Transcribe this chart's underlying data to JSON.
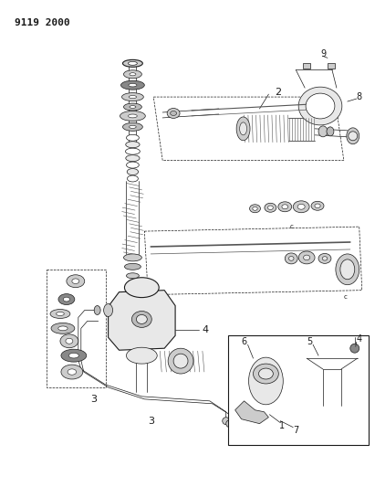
{
  "header": "9119 2000",
  "bg_color": "#ffffff",
  "line_color": "#1a1a1a",
  "fig_width": 4.11,
  "fig_height": 5.33,
  "dpi": 100,
  "gray_dark": "#555555",
  "gray_mid": "#888888",
  "gray_light": "#bbbbbb",
  "gray_fill": "#cccccc",
  "gray_vlight": "#e8e8e8"
}
